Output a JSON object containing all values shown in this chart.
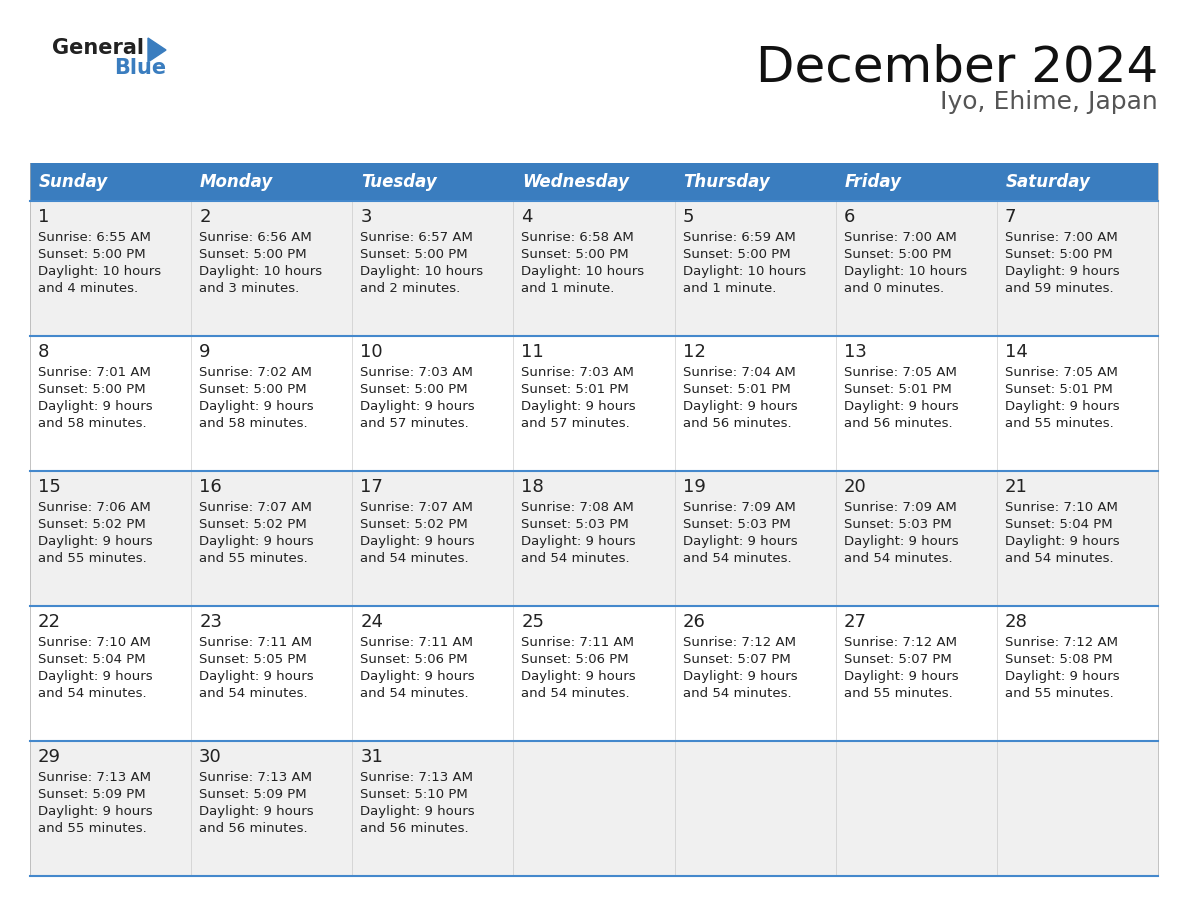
{
  "title": "December 2024",
  "subtitle": "Iyo, Ehime, Japan",
  "header_bg_color": "#3a7dbf",
  "header_text_color": "#ffffff",
  "cell_bg_color_odd": "#f0f0f0",
  "cell_bg_color_even": "#ffffff",
  "grid_line_color": "#4488cc",
  "text_color": "#222222",
  "day_headers": [
    "Sunday",
    "Monday",
    "Tuesday",
    "Wednesday",
    "Thursday",
    "Friday",
    "Saturday"
  ],
  "weeks": [
    [
      {
        "day": 1,
        "sunrise": "6:55 AM",
        "sunset": "5:00 PM",
        "daylight": "10 hours",
        "daylight2": "and 4 minutes."
      },
      {
        "day": 2,
        "sunrise": "6:56 AM",
        "sunset": "5:00 PM",
        "daylight": "10 hours",
        "daylight2": "and 3 minutes."
      },
      {
        "day": 3,
        "sunrise": "6:57 AM",
        "sunset": "5:00 PM",
        "daylight": "10 hours",
        "daylight2": "and 2 minutes."
      },
      {
        "day": 4,
        "sunrise": "6:58 AM",
        "sunset": "5:00 PM",
        "daylight": "10 hours",
        "daylight2": "and 1 minute."
      },
      {
        "day": 5,
        "sunrise": "6:59 AM",
        "sunset": "5:00 PM",
        "daylight": "10 hours",
        "daylight2": "and 1 minute."
      },
      {
        "day": 6,
        "sunrise": "7:00 AM",
        "sunset": "5:00 PM",
        "daylight": "10 hours",
        "daylight2": "and 0 minutes."
      },
      {
        "day": 7,
        "sunrise": "7:00 AM",
        "sunset": "5:00 PM",
        "daylight": "9 hours",
        "daylight2": "and 59 minutes."
      }
    ],
    [
      {
        "day": 8,
        "sunrise": "7:01 AM",
        "sunset": "5:00 PM",
        "daylight": "9 hours",
        "daylight2": "and 58 minutes."
      },
      {
        "day": 9,
        "sunrise": "7:02 AM",
        "sunset": "5:00 PM",
        "daylight": "9 hours",
        "daylight2": "and 58 minutes."
      },
      {
        "day": 10,
        "sunrise": "7:03 AM",
        "sunset": "5:00 PM",
        "daylight": "9 hours",
        "daylight2": "and 57 minutes."
      },
      {
        "day": 11,
        "sunrise": "7:03 AM",
        "sunset": "5:01 PM",
        "daylight": "9 hours",
        "daylight2": "and 57 minutes."
      },
      {
        "day": 12,
        "sunrise": "7:04 AM",
        "sunset": "5:01 PM",
        "daylight": "9 hours",
        "daylight2": "and 56 minutes."
      },
      {
        "day": 13,
        "sunrise": "7:05 AM",
        "sunset": "5:01 PM",
        "daylight": "9 hours",
        "daylight2": "and 56 minutes."
      },
      {
        "day": 14,
        "sunrise": "7:05 AM",
        "sunset": "5:01 PM",
        "daylight": "9 hours",
        "daylight2": "and 55 minutes."
      }
    ],
    [
      {
        "day": 15,
        "sunrise": "7:06 AM",
        "sunset": "5:02 PM",
        "daylight": "9 hours",
        "daylight2": "and 55 minutes."
      },
      {
        "day": 16,
        "sunrise": "7:07 AM",
        "sunset": "5:02 PM",
        "daylight": "9 hours",
        "daylight2": "and 55 minutes."
      },
      {
        "day": 17,
        "sunrise": "7:07 AM",
        "sunset": "5:02 PM",
        "daylight": "9 hours",
        "daylight2": "and 54 minutes."
      },
      {
        "day": 18,
        "sunrise": "7:08 AM",
        "sunset": "5:03 PM",
        "daylight": "9 hours",
        "daylight2": "and 54 minutes."
      },
      {
        "day": 19,
        "sunrise": "7:09 AM",
        "sunset": "5:03 PM",
        "daylight": "9 hours",
        "daylight2": "and 54 minutes."
      },
      {
        "day": 20,
        "sunrise": "7:09 AM",
        "sunset": "5:03 PM",
        "daylight": "9 hours",
        "daylight2": "and 54 minutes."
      },
      {
        "day": 21,
        "sunrise": "7:10 AM",
        "sunset": "5:04 PM",
        "daylight": "9 hours",
        "daylight2": "and 54 minutes."
      }
    ],
    [
      {
        "day": 22,
        "sunrise": "7:10 AM",
        "sunset": "5:04 PM",
        "daylight": "9 hours",
        "daylight2": "and 54 minutes."
      },
      {
        "day": 23,
        "sunrise": "7:11 AM",
        "sunset": "5:05 PM",
        "daylight": "9 hours",
        "daylight2": "and 54 minutes."
      },
      {
        "day": 24,
        "sunrise": "7:11 AM",
        "sunset": "5:06 PM",
        "daylight": "9 hours",
        "daylight2": "and 54 minutes."
      },
      {
        "day": 25,
        "sunrise": "7:11 AM",
        "sunset": "5:06 PM",
        "daylight": "9 hours",
        "daylight2": "and 54 minutes."
      },
      {
        "day": 26,
        "sunrise": "7:12 AM",
        "sunset": "5:07 PM",
        "daylight": "9 hours",
        "daylight2": "and 54 minutes."
      },
      {
        "day": 27,
        "sunrise": "7:12 AM",
        "sunset": "5:07 PM",
        "daylight": "9 hours",
        "daylight2": "and 55 minutes."
      },
      {
        "day": 28,
        "sunrise": "7:12 AM",
        "sunset": "5:08 PM",
        "daylight": "9 hours",
        "daylight2": "and 55 minutes."
      }
    ],
    [
      {
        "day": 29,
        "sunrise": "7:13 AM",
        "sunset": "5:09 PM",
        "daylight": "9 hours",
        "daylight2": "and 55 minutes."
      },
      {
        "day": 30,
        "sunrise": "7:13 AM",
        "sunset": "5:09 PM",
        "daylight": "9 hours",
        "daylight2": "and 56 minutes."
      },
      {
        "day": 31,
        "sunrise": "7:13 AM",
        "sunset": "5:10 PM",
        "daylight": "9 hours",
        "daylight2": "and 56 minutes."
      },
      null,
      null,
      null,
      null
    ]
  ]
}
